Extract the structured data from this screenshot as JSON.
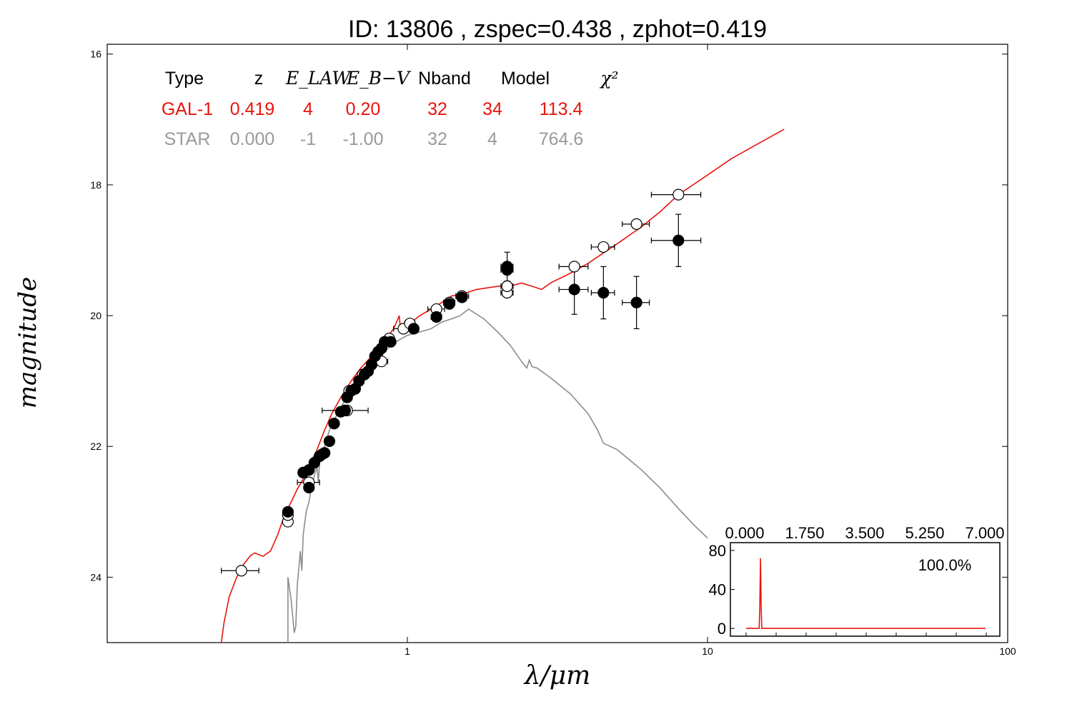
{
  "chart_data": {
    "type": "scatter",
    "title": "ID:  13806 , zspec=0.438 , zphot=0.419",
    "xlabel": "λ/μm",
    "ylabel": "magnitude",
    "x_scale": "log",
    "xlim": [
      0.1,
      100
    ],
    "ylim": [
      25,
      15.85
    ],
    "y_inverted": true,
    "xticks": [
      "1",
      "10",
      "100"
    ],
    "yticks": [
      "16",
      "18",
      "20",
      "22",
      "24"
    ],
    "fit_table": {
      "headers": [
        "Type",
        "z",
        "E_LAW",
        "E_B−V",
        "Nband",
        "Model",
        "χ²"
      ],
      "rows": [
        {
          "name": "GAL-1",
          "color": "#e8140c",
          "values": [
            "GAL-1",
            "0.419",
            "4",
            "0.20",
            "32",
            "34",
            "113.4"
          ]
        },
        {
          "name": "STAR",
          "color": "#9a9a9a",
          "values": [
            "STAR",
            "0.000",
            "-1",
            "-1.00",
            "32",
            "4",
            "764.6"
          ]
        }
      ]
    },
    "series": [
      {
        "kind": "line",
        "color": "#e8140c",
        "x": [
          0.24,
          0.245,
          0.255,
          0.27,
          0.285,
          0.3,
          0.31,
          0.33,
          0.35,
          0.37,
          0.39,
          0.41,
          0.43,
          0.45,
          0.47,
          0.5,
          0.53,
          0.56,
          0.6,
          0.65,
          0.7,
          0.75,
          0.8,
          0.85,
          0.9,
          0.93,
          0.94,
          0.95,
          1.0,
          1.1,
          1.2,
          1.3,
          1.4,
          1.5,
          1.7,
          2.0,
          2.2,
          2.4,
          2.6,
          2.8,
          3.0,
          3.5,
          4.0,
          5.0,
          6.0,
          7.0,
          8.0,
          10.0,
          12.0,
          15.0,
          18.0
        ],
        "y": [
          25.0,
          24.7,
          24.3,
          24.0,
          23.8,
          23.67,
          23.63,
          23.68,
          23.6,
          23.35,
          23.05,
          22.85,
          22.65,
          22.5,
          22.3,
          22.05,
          21.75,
          21.5,
          21.25,
          21.0,
          20.8,
          20.65,
          20.5,
          20.35,
          20.2,
          20.05,
          20.0,
          20.25,
          20.15,
          20.0,
          19.9,
          19.8,
          19.7,
          19.68,
          19.6,
          19.55,
          19.55,
          19.5,
          19.55,
          19.6,
          19.5,
          19.35,
          19.2,
          18.9,
          18.65,
          18.4,
          18.15,
          17.85,
          17.6,
          17.35,
          17.15
        ]
      },
      {
        "kind": "line",
        "color": "#8c8c8c",
        "x": [
          0.4,
          0.4,
          0.41,
          0.42,
          0.425,
          0.43,
          0.44,
          0.445,
          0.45,
          0.46,
          0.47,
          0.48,
          0.49,
          0.5,
          0.505,
          0.51,
          0.52,
          0.53,
          0.55,
          0.57,
          0.6,
          0.65,
          0.7,
          0.75,
          0.8,
          0.85,
          0.9,
          1.0,
          1.1,
          1.2,
          1.3,
          1.4,
          1.5,
          1.6,
          1.8,
          2.0,
          2.2,
          2.4,
          2.5,
          2.55,
          2.6,
          2.7,
          3.0,
          3.5,
          4.0,
          4.3,
          4.5,
          5.0,
          6.0,
          7.0,
          8.0,
          9.0,
          10.0
        ],
        "y": [
          25.0,
          24.0,
          24.35,
          24.85,
          24.75,
          24.1,
          23.6,
          23.9,
          23.35,
          23.0,
          22.85,
          22.6,
          22.45,
          22.3,
          22.55,
          22.25,
          22.1,
          22.0,
          21.75,
          21.6,
          21.4,
          21.15,
          20.95,
          20.8,
          20.65,
          20.52,
          20.42,
          20.3,
          20.25,
          20.2,
          20.1,
          20.05,
          20.0,
          19.9,
          20.05,
          20.25,
          20.45,
          20.7,
          20.8,
          20.68,
          20.78,
          20.8,
          20.95,
          21.2,
          21.5,
          21.75,
          21.95,
          22.05,
          22.35,
          22.65,
          22.95,
          23.2,
          23.4
        ]
      }
    ],
    "points": {
      "open": [
        {
          "x": 0.28,
          "y": 23.9,
          "xerr": [
            0.24,
            0.32
          ],
          "yerr": 0.0
        },
        {
          "x": 0.4,
          "y": 23.15,
          "xerr": [
            0.39,
            0.41
          ],
          "yerr": 0.0
        },
        {
          "x": 0.4,
          "y": 23.05,
          "xerr": [
            0.39,
            0.41
          ],
          "yerr": 0.0
        },
        {
          "x": 0.47,
          "y": 22.55,
          "xerr": [
            0.43,
            0.51
          ],
          "yerr": 0.0
        },
        {
          "x": 0.45,
          "y": 22.4,
          "xerr": [
            0.44,
            0.46
          ],
          "yerr": 0.0
        },
        {
          "x": 0.52,
          "y": 22.12,
          "xerr": [
            0.51,
            0.53
          ],
          "yerr": 0.0
        },
        {
          "x": 0.57,
          "y": 21.65,
          "xerr": [
            0.56,
            0.58
          ],
          "yerr": 0.0
        },
        {
          "x": 0.63,
          "y": 21.45,
          "xerr": [
            0.52,
            0.74
          ],
          "yerr": 0.0
        },
        {
          "x": 0.64,
          "y": 21.15,
          "xerr": [
            0.63,
            0.65
          ],
          "yerr": 0.0
        },
        {
          "x": 0.71,
          "y": 20.9,
          "xerr": [
            0.7,
            0.72
          ],
          "yerr": 0.0
        },
        {
          "x": 0.82,
          "y": 20.7,
          "xerr": [
            0.78,
            0.86
          ],
          "yerr": 0.0
        },
        {
          "x": 0.87,
          "y": 20.35,
          "xerr": [
            0.85,
            0.89
          ],
          "yerr": 0.0
        },
        {
          "x": 0.97,
          "y": 20.2,
          "xerr": [
            0.9,
            1.05
          ],
          "yerr": 0.0
        },
        {
          "x": 1.02,
          "y": 20.12,
          "xerr": [
            0.98,
            1.06
          ],
          "yerr": 0.0
        },
        {
          "x": 1.25,
          "y": 19.9,
          "xerr": [
            1.17,
            1.33
          ],
          "yerr": 0.0
        },
        {
          "x": 1.38,
          "y": 19.8,
          "xerr": [
            1.32,
            1.44
          ],
          "yerr": 0.0
        },
        {
          "x": 1.52,
          "y": 19.7,
          "xerr": [
            1.45,
            1.6
          ],
          "yerr": 0.0
        },
        {
          "x": 2.15,
          "y": 19.65,
          "xerr": [
            2.05,
            2.25
          ],
          "yerr": 0.0
        },
        {
          "x": 2.15,
          "y": 19.55,
          "xerr": [
            2.05,
            2.25
          ],
          "yerr": 0.0
        },
        {
          "x": 3.6,
          "y": 19.25,
          "xerr": [
            3.2,
            4.0
          ],
          "yerr": 0.0
        },
        {
          "x": 4.5,
          "y": 18.95,
          "xerr": [
            4.1,
            4.9
          ],
          "yerr": 0.0
        },
        {
          "x": 5.8,
          "y": 18.6,
          "xerr": [
            5.2,
            6.4
          ],
          "yerr": 0.0
        },
        {
          "x": 8.0,
          "y": 18.15,
          "xerr": [
            6.5,
            9.5
          ],
          "yerr": 0.0
        }
      ],
      "filled": [
        {
          "x": 0.4,
          "y": 23.0,
          "xerr": [
            0.39,
            0.41
          ],
          "yerr": 0.05
        },
        {
          "x": 0.45,
          "y": 22.4,
          "xerr": [
            0.44,
            0.46
          ],
          "yerr": 0.02
        },
        {
          "x": 0.47,
          "y": 22.63,
          "xerr": [
            0.46,
            0.48
          ],
          "yerr": 0.02
        },
        {
          "x": 0.47,
          "y": 22.36,
          "xerr": [
            0.46,
            0.48
          ],
          "yerr": 0.02
        },
        {
          "x": 0.49,
          "y": 22.25,
          "xerr": [
            0.48,
            0.5
          ],
          "yerr": 0.02
        },
        {
          "x": 0.51,
          "y": 22.15,
          "xerr": [
            0.5,
            0.52
          ],
          "yerr": 0.02
        },
        {
          "x": 0.53,
          "y": 22.1,
          "xerr": [
            0.52,
            0.54
          ],
          "yerr": 0.02
        },
        {
          "x": 0.55,
          "y": 21.92,
          "xerr": [
            0.54,
            0.56
          ],
          "yerr": 0.02
        },
        {
          "x": 0.57,
          "y": 21.65,
          "xerr": [
            0.56,
            0.58
          ],
          "yerr": 0.02
        },
        {
          "x": 0.6,
          "y": 21.47,
          "xerr": [
            0.59,
            0.61
          ],
          "yerr": 0.02
        },
        {
          "x": 0.62,
          "y": 21.45,
          "xerr": [
            0.61,
            0.63
          ],
          "yerr": 0.02
        },
        {
          "x": 0.63,
          "y": 21.25,
          "xerr": [
            0.62,
            0.64
          ],
          "yerr": 0.02
        },
        {
          "x": 0.65,
          "y": 21.15,
          "xerr": [
            0.64,
            0.66
          ],
          "yerr": 0.02
        },
        {
          "x": 0.67,
          "y": 21.12,
          "xerr": [
            0.66,
            0.68
          ],
          "yerr": 0.02
        },
        {
          "x": 0.69,
          "y": 21.0,
          "xerr": [
            0.68,
            0.7
          ],
          "yerr": 0.02
        },
        {
          "x": 0.72,
          "y": 20.9,
          "xerr": [
            0.71,
            0.73
          ],
          "yerr": 0.02
        },
        {
          "x": 0.74,
          "y": 20.85,
          "xerr": [
            0.73,
            0.75
          ],
          "yerr": 0.02
        },
        {
          "x": 0.76,
          "y": 20.75,
          "xerr": [
            0.75,
            0.77
          ],
          "yerr": 0.02
        },
        {
          "x": 0.78,
          "y": 20.62,
          "xerr": [
            0.77,
            0.79
          ],
          "yerr": 0.02
        },
        {
          "x": 0.8,
          "y": 20.55,
          "xerr": [
            0.79,
            0.81
          ],
          "yerr": 0.02
        },
        {
          "x": 0.82,
          "y": 20.5,
          "xerr": [
            0.81,
            0.83
          ],
          "yerr": 0.02
        },
        {
          "x": 0.84,
          "y": 20.4,
          "xerr": [
            0.83,
            0.85
          ],
          "yerr": 0.02
        },
        {
          "x": 0.88,
          "y": 20.4,
          "xerr": [
            0.87,
            0.89
          ],
          "yerr": 0.02
        },
        {
          "x": 1.05,
          "y": 20.2,
          "xerr": [
            1.03,
            1.07
          ],
          "yerr": 0.02
        },
        {
          "x": 1.25,
          "y": 20.02,
          "xerr": [
            1.2,
            1.3
          ],
          "yerr": 0.02
        },
        {
          "x": 1.38,
          "y": 19.82,
          "xerr": [
            1.34,
            1.42
          ],
          "yerr": 0.02
        },
        {
          "x": 1.52,
          "y": 19.72,
          "xerr": [
            1.48,
            1.56
          ],
          "yerr": 0.02
        },
        {
          "x": 2.15,
          "y": 19.25,
          "xerr": [
            2.05,
            2.25
          ],
          "yerr": 0.22
        },
        {
          "x": 2.15,
          "y": 19.3,
          "xerr": [
            2.05,
            2.25
          ],
          "yerr": 0.05
        },
        {
          "x": 3.6,
          "y": 19.6,
          "xerr": [
            3.2,
            4.0
          ],
          "yerr": 0.38
        },
        {
          "x": 4.5,
          "y": 19.65,
          "xerr": [
            4.1,
            4.9
          ],
          "yerr": 0.4
        },
        {
          "x": 5.8,
          "y": 19.8,
          "xerr": [
            5.2,
            6.4
          ],
          "yerr": 0.4
        },
        {
          "x": 8.0,
          "y": 18.85,
          "xerr": [
            6.5,
            9.5
          ],
          "yerr": 0.4
        }
      ]
    },
    "inset": {
      "type": "line",
      "color": "#e8140c",
      "label": "100.0%",
      "xticks": [
        "0.000",
        "1.750",
        "3.500",
        "5.250",
        "7.000"
      ],
      "yticks": [
        "80",
        "40",
        "0"
      ],
      "xlim": [
        0,
        7.0
      ],
      "ylim": [
        -8,
        88
      ],
      "x": [
        0.0,
        0.38,
        0.4,
        0.419,
        0.44,
        0.46,
        7.0
      ],
      "y": [
        0,
        0,
        20,
        72,
        20,
        0,
        0
      ]
    }
  }
}
